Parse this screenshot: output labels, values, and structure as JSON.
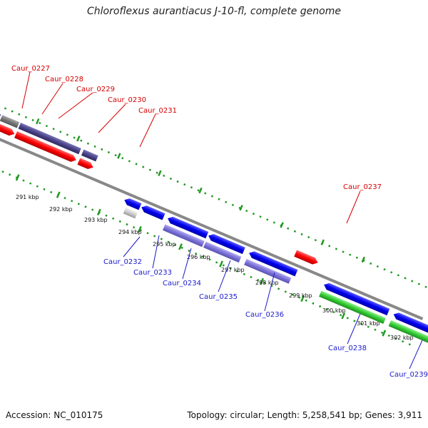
{
  "header": {
    "title": "Chloroflexus aurantiacus J-10-fl, complete genome"
  },
  "footer": {
    "accession": "Accession: NC_010175",
    "summary": "Topology: circular; Length: 5,258,541 bp; Genes: 3,911"
  },
  "colors": {
    "forward_cds": "#ff0000",
    "reverse_cds": "#0000ee",
    "forward_feature": "#4a4388",
    "reverse_feature": "#7b72d8",
    "rna_gene": "#33cc33",
    "pseudo": "#cccccc",
    "backbone": "#888888",
    "ticks": "#229922"
  },
  "tick_labels": [
    "291 kbp",
    "292 kbp",
    "293 kbp",
    "294 kbp",
    "295 kbp",
    "296 kbp",
    "297 kbp",
    "298 kbp",
    "299 kbp",
    "300 kbp",
    "301 kbp",
    "302 kbp"
  ],
  "gene_labels": {
    "top": [
      "Caur_0227",
      "Caur_0228",
      "Caur_0229",
      "Caur_0230",
      "Caur_0231",
      "Caur_0237"
    ],
    "bottom": [
      "Caur_0232",
      "Caur_0233",
      "Caur_0234",
      "Caur_0235",
      "Caur_0236",
      "Caur_0238",
      "Caur_0239"
    ]
  }
}
